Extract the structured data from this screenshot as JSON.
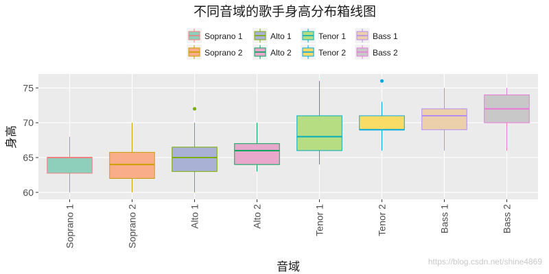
{
  "chart_data": {
    "type": "boxplot",
    "title": "不同音域的歌手身高分布箱线图",
    "xlabel": "音域",
    "ylabel": "身高",
    "ylim": [
      59,
      77
    ],
    "yticks": [
      60,
      65,
      70,
      75
    ],
    "grid": true,
    "legend_position": "top",
    "categories": [
      "Soprano 1",
      "Soprano 2",
      "Alto 1",
      "Alto 2",
      "Tenor 1",
      "Tenor 2",
      "Bass 1",
      "Bass 2"
    ],
    "series": [
      {
        "name": "Soprano 1",
        "min": 60,
        "q1": 62.75,
        "median": 65,
        "q3": 65,
        "max": 68,
        "outliers": [],
        "fill": "#8ecfbc",
        "stroke": "#f08080"
      },
      {
        "name": "Soprano 2",
        "min": 60,
        "q1": 62,
        "median": 64,
        "q3": 65.75,
        "max": 70,
        "outliers": [],
        "fill": "#f9ad88",
        "stroke": "#c9a000"
      },
      {
        "name": "Alto 1",
        "min": 60,
        "q1": 63,
        "median": 65,
        "q3": 66.5,
        "max": 70,
        "outliers": [
          72
        ],
        "fill": "#a9b2d4",
        "stroke": "#7cae00"
      },
      {
        "name": "Alto 2",
        "min": 63,
        "q1": 64,
        "median": 66,
        "q3": 67,
        "max": 70,
        "outliers": [],
        "fill": "#e8a8cc",
        "stroke": "#00a65a"
      },
      {
        "name": "Tenor 1",
        "min": 64,
        "q1": 66,
        "median": 68,
        "q3": 71,
        "max": 76,
        "outliers": [],
        "fill": "#b7dd82",
        "stroke": "#00afbb"
      },
      {
        "name": "Tenor 2",
        "min": 66,
        "q1": 69,
        "median": 69,
        "q3": 71,
        "max": 73,
        "outliers": [
          76
        ],
        "fill": "#f8dc66",
        "stroke": "#00a8e0"
      },
      {
        "name": "Bass 1",
        "min": 66,
        "q1": 69,
        "median": 71,
        "q3": 72,
        "max": 75,
        "outliers": [],
        "fill": "#ecd0ac",
        "stroke": "#b58cf0"
      },
      {
        "name": "Bass 2",
        "min": 66,
        "q1": 70,
        "median": 72,
        "q3": 74,
        "max": 75,
        "outliers": [],
        "fill": "#c8c8c8",
        "stroke": "#e87ad6"
      }
    ]
  },
  "watermark": "https://blog.csdn.net/shine4869"
}
